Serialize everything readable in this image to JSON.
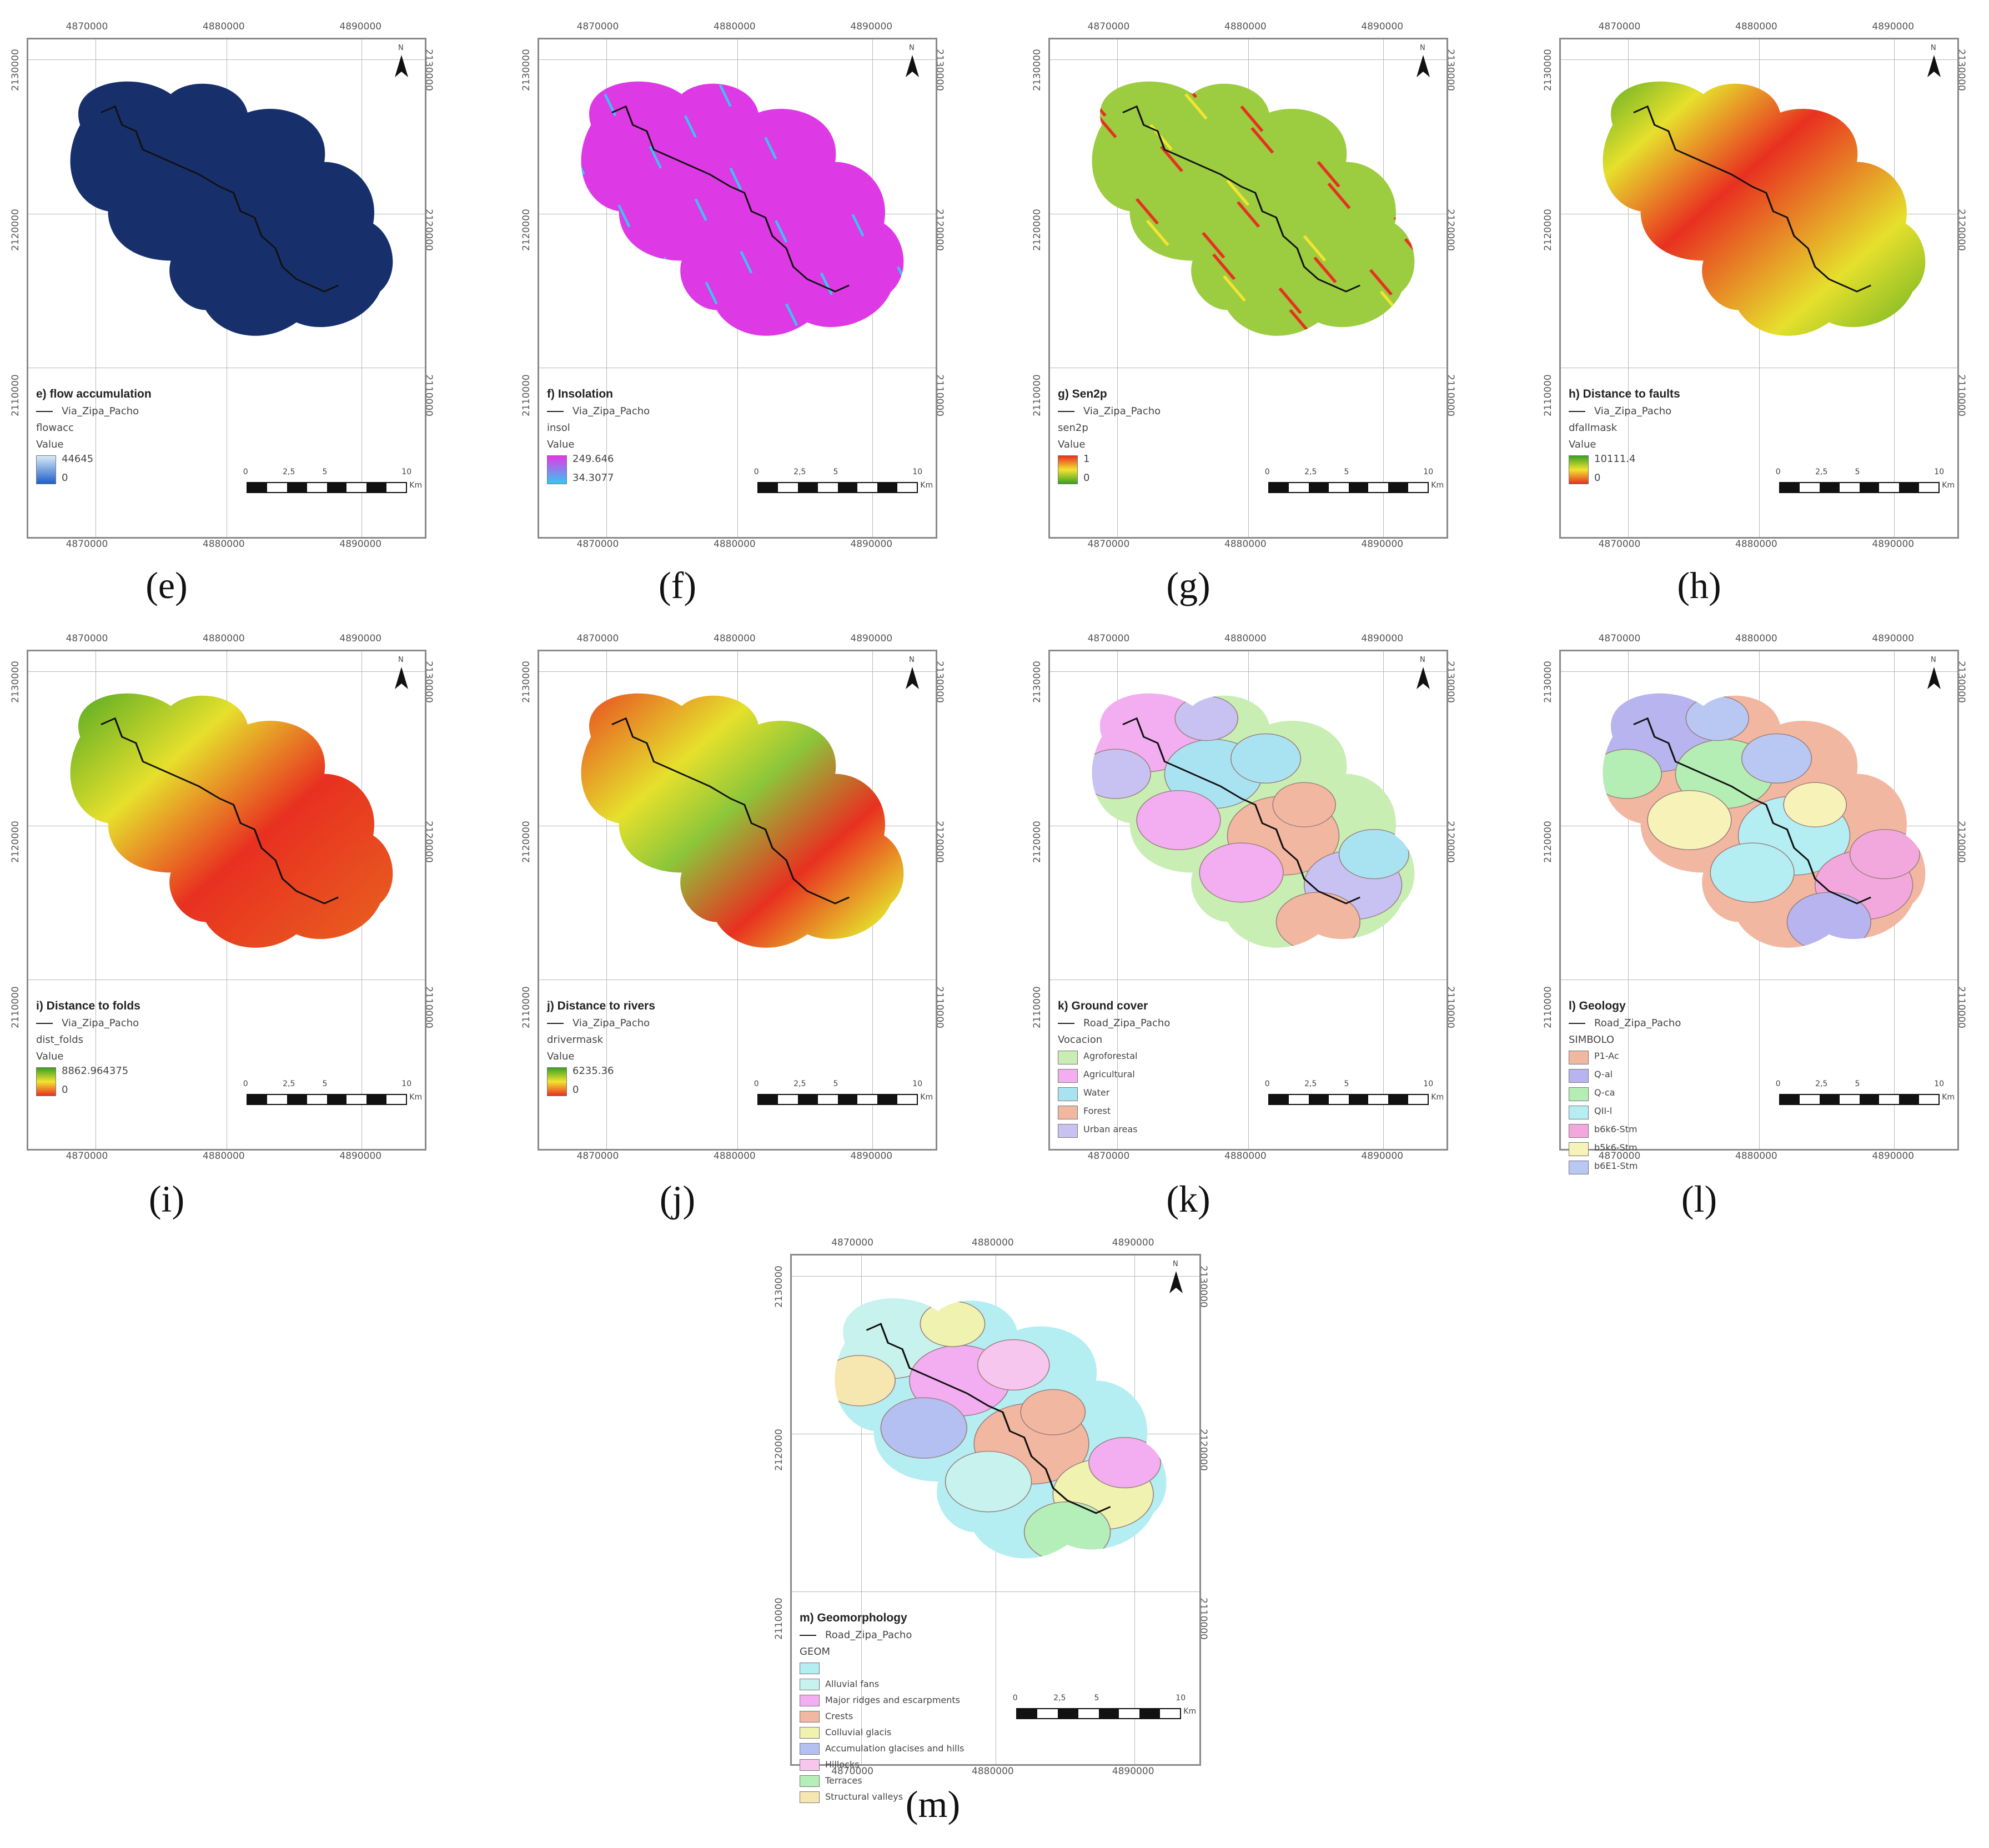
{
  "coords": {
    "x_top": [
      "4870000",
      "4880000",
      "4890000"
    ],
    "x_bottom": [
      "4870000",
      "4880000",
      "4890000"
    ],
    "y_left": [
      "2130000",
      "2120000",
      "2110000"
    ],
    "y_right": [
      "2130000",
      "2120000",
      "2110000"
    ]
  },
  "scale": {
    "ticks": [
      "0",
      "2,5",
      "5",
      "10"
    ],
    "unit": "Km"
  },
  "north_label": "N",
  "panels": [
    {
      "id": "e",
      "caption": "(e)",
      "title": "e) flow accumulation",
      "road": "Via_Zipa_Pacho",
      "layer": "flowacc",
      "value_label": "Value",
      "max": "44645",
      "min": "0",
      "colors": [
        "#d8eaf8",
        "#1e5fc8"
      ],
      "fill": "#17306b"
    },
    {
      "id": "f",
      "caption": "(f)",
      "title": "f) Insolation",
      "road": "Via_Zipa_Pacho",
      "layer": "insol",
      "value_label": "Value",
      "max": "249.646",
      "min": "34.3077",
      "colors": [
        "#e437e8",
        "#36c7f0"
      ],
      "fill": "#dd3ae6"
    },
    {
      "id": "g",
      "caption": "(g)",
      "title": "g) Sen2p",
      "road": "Via_Zipa_Pacho",
      "layer": "sen2p",
      "value_label": "Value",
      "max": "1",
      "min": "0",
      "colors": [
        "#e83020",
        "#f2e430",
        "#3aa022"
      ],
      "fill": "#8ec63a"
    },
    {
      "id": "h",
      "caption": "(h)",
      "title": "h) Distance to faults",
      "road": "Via_Zipa_Pacho",
      "layer": "dfallmask",
      "value_label": "Value",
      "max": "10111.4",
      "min": "0",
      "colors": [
        "#3aa022",
        "#f2e430",
        "#e83020"
      ],
      "fill": "grad-fault"
    },
    {
      "id": "i",
      "caption": "(i)",
      "title": "i) Distance to folds",
      "road": "Via_Zipa_Pacho",
      "layer": "dist_folds",
      "value_label": "Value",
      "max": "8862.964375",
      "min": "0",
      "colors": [
        "#3aa022",
        "#f2e430",
        "#e83020"
      ],
      "fill": "grad-fold"
    },
    {
      "id": "j",
      "caption": "(j)",
      "title": "j) Distance to rivers",
      "road": "Via_Zipa_Pacho",
      "layer": "drivermask",
      "value_label": "Value",
      "max": "6235.36",
      "min": "0",
      "colors": [
        "#3aa022",
        "#f2e430",
        "#e83020"
      ],
      "fill": "grad-river"
    },
    {
      "id": "k",
      "caption": "(k)",
      "title": "k) Ground cover",
      "road": "Road_Zipa_Pacho",
      "layer": "Vocacion",
      "classes": [
        {
          "label": "Agroforestal",
          "color": "#c9eeb4"
        },
        {
          "label": "Agricultural",
          "color": "#f2aef0"
        },
        {
          "label": "Water",
          "color": "#a9e3f2"
        },
        {
          "label": "Forest",
          "color": "#f2b7a0"
        },
        {
          "label": "Urban areas",
          "color": "#c8c2f2"
        }
      ]
    },
    {
      "id": "l",
      "caption": "(l)",
      "title": "l) Geology",
      "road": "Road_Zipa_Pacho",
      "layer": "SIMBOLO",
      "classes": [
        {
          "label": "P1-Ac",
          "color": "#f2b7a0"
        },
        {
          "label": "Q-al",
          "color": "#b8b4f0"
        },
        {
          "label": "Q-ca",
          "color": "#b4eeb4"
        },
        {
          "label": "QII-l",
          "color": "#b4eef2"
        },
        {
          "label": "b6k6-Stm",
          "color": "#f2a8dc"
        },
        {
          "label": "b5k6-Stm",
          "color": "#f6f2b8"
        },
        {
          "label": "b6E1-Stm",
          "color": "#b8c8f2"
        }
      ]
    },
    {
      "id": "m",
      "caption": "(m)",
      "title": "m) Geomorphology",
      "road": "Road_Zipa_Pacho",
      "layer": "GEOM",
      "classes": [
        {
          "label": "",
          "color": "#b4eef2"
        },
        {
          "label": "Alluvial fans",
          "color": "#c8f2ee"
        },
        {
          "label": "Major ridges and escarpments",
          "color": "#f2aef0"
        },
        {
          "label": "Crests",
          "color": "#f2b7a0"
        },
        {
          "label": "Colluvial glacis",
          "color": "#f0f2b0"
        },
        {
          "label": "Accumulation glacises and hills",
          "color": "#b4c0f2"
        },
        {
          "label": "Hillocks",
          "color": "#f6c6ee"
        },
        {
          "label": "Terraces",
          "color": "#b4eeb8"
        },
        {
          "label": "Structural valleys",
          "color": "#f6e6b0"
        }
      ]
    }
  ]
}
